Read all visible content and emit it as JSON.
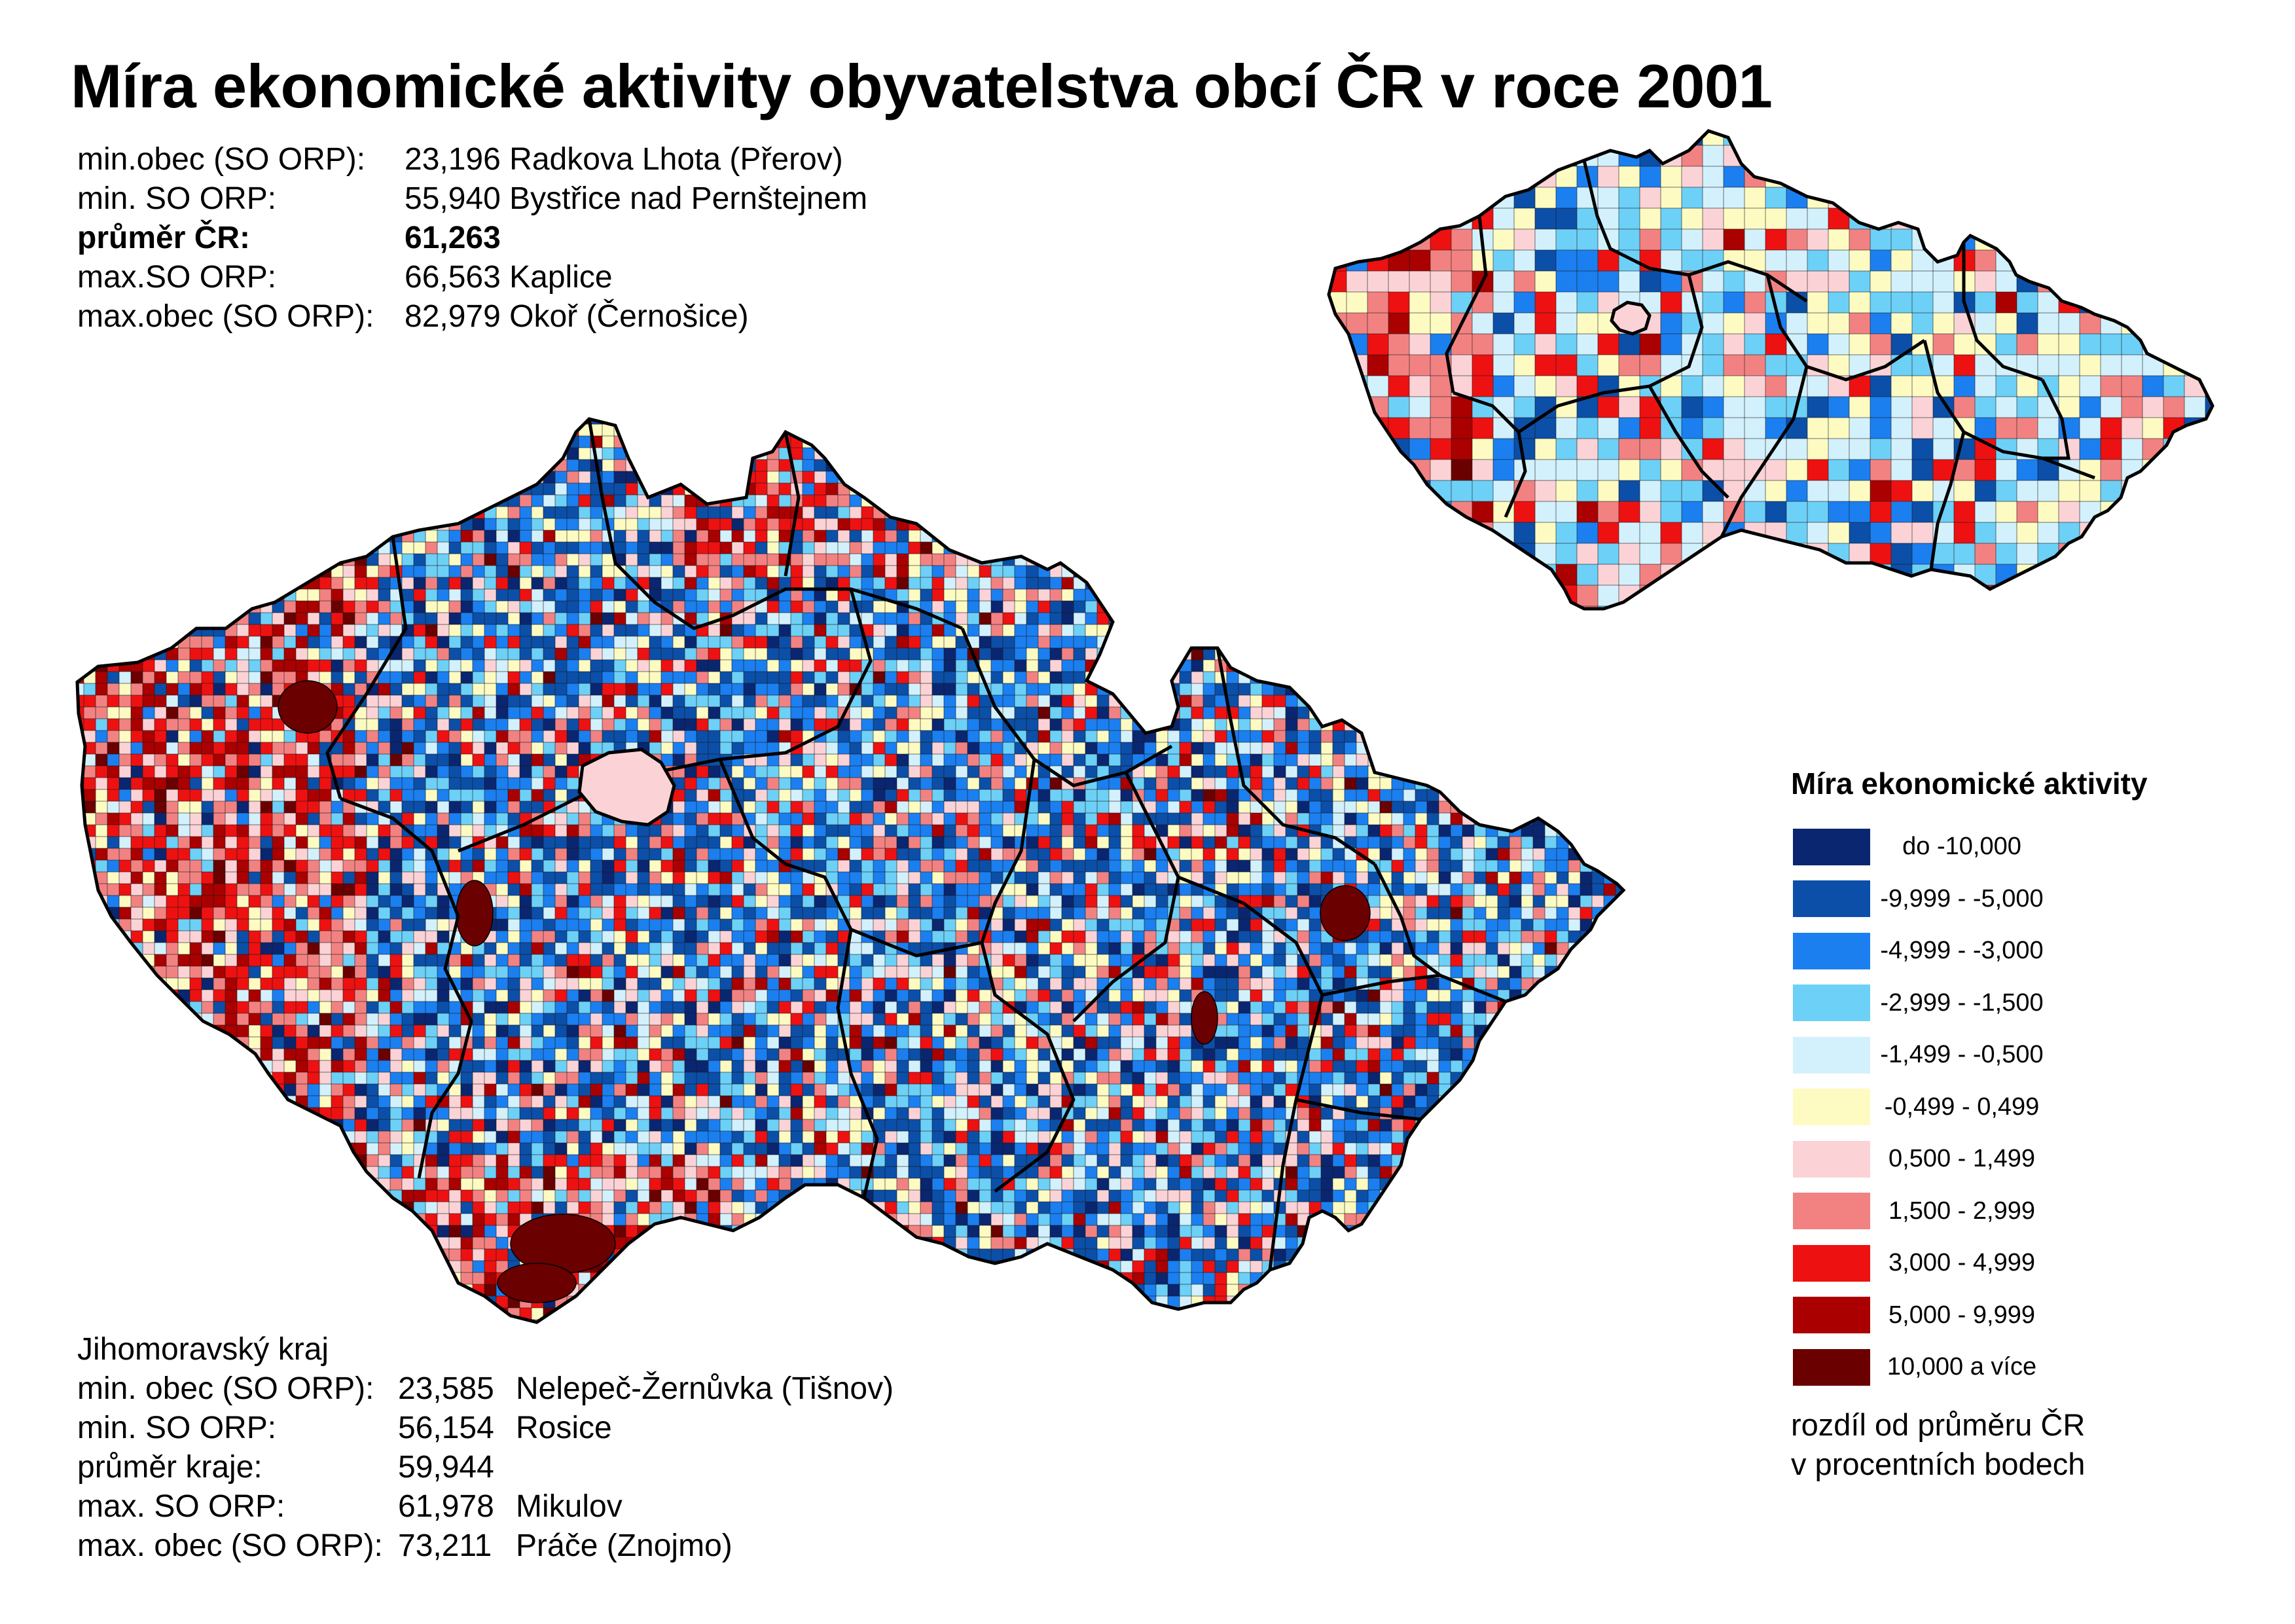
{
  "title": "Míra ekonomické aktivity obyvatelstva obcí ČR v roce 2001",
  "stats_cr": [
    {
      "label": "min.obec (SO ORP):",
      "value": "23,196 Radkova Lhota (Přerov)",
      "bold": false
    },
    {
      "label": "min. SO ORP:",
      "value": "55,940 Bystřice nad Pernštejnem",
      "bold": false
    },
    {
      "label": "průměr ČR:",
      "value": "61,263",
      "bold": true
    },
    {
      "label": "max.SO ORP:",
      "value": "66,563 Kaplice",
      "bold": false
    },
    {
      "label": "max.obec (SO ORP):",
      "value": "82,979 Okoř (Černošice)",
      "bold": false
    }
  ],
  "stats_region": {
    "name": "Jihomoravský kraj",
    "rows": [
      {
        "label": "min. obec (SO ORP):",
        "value": "23,585",
        "place": "Nelepeč-Žernůvka (Tišnov)"
      },
      {
        "label": "min. SO ORP:",
        "value": "56,154",
        "place": "Rosice"
      },
      {
        "label": "průměr kraje:",
        "value": "59,944",
        "place": ""
      },
      {
        "label": "max. SO ORP:",
        "value": "61,978",
        "place": "Mikulov"
      },
      {
        "label": "max. obec (SO ORP):",
        "value": "73,211",
        "place": "Práče (Znojmo)"
      }
    ]
  },
  "legend": {
    "title": "Míra ekonomické aktivity",
    "items": [
      {
        "label": "do -10,000",
        "color": "#0a2670"
      },
      {
        "label": "-9,999 - -5,000",
        "color": "#0b4fa8"
      },
      {
        "label": "-4,999 - -3,000",
        "color": "#1b7ff0"
      },
      {
        "label": "-2,999 - -1,500",
        "color": "#6dd0f7"
      },
      {
        "label": "-1,499 - -0,500",
        "color": "#d3f1fc"
      },
      {
        "label": "-0,499 -  0,499",
        "color": "#fdfbc2"
      },
      {
        "label": "0,500 -  1,499",
        "color": "#fbd3d6"
      },
      {
        "label": "1,500 -  2,999",
        "color": "#f28282"
      },
      {
        "label": "3,000 -  4,999",
        "color": "#ee1111"
      },
      {
        "label": "5,000 -  9,999",
        "color": "#aa0000"
      },
      {
        "label": "10,000 a více",
        "color": "#6a0000"
      }
    ],
    "note_line1": "rozdíl od průměru ČR",
    "note_line2": "v procentních bodech"
  }
}
